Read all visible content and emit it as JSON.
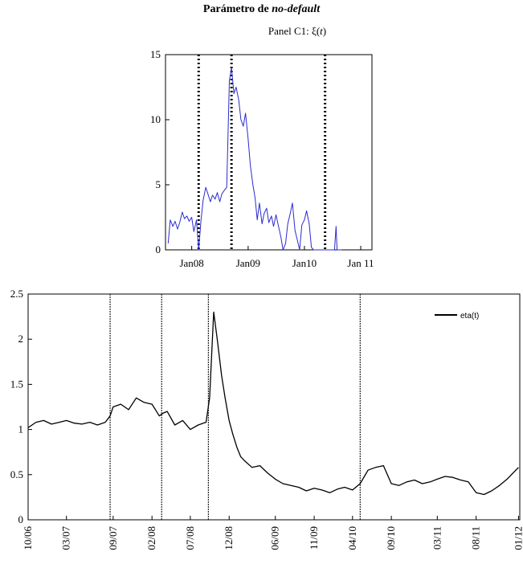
{
  "title": {
    "main": "Parámetro de",
    "main_italic": "no-default"
  },
  "panel": {
    "prefix": "Panel C1: ",
    "symbol": "ξ",
    "open": "(",
    "var": "t",
    "close": ")"
  },
  "colors": {
    "top_series": "#2b2bd0",
    "bottom_series": "#000000",
    "axis": "#000000"
  },
  "chart_data": [
    {
      "type": "line",
      "title": "Panel C1: ξ(t)",
      "xlabel": "",
      "ylabel": "",
      "x_ticks": [
        "Jan08",
        "Jan09",
        "Jan10",
        "Jan 11"
      ],
      "ylim": [
        0,
        15
      ],
      "y_ticks": [
        "0",
        "5",
        "10",
        "15"
      ],
      "xlim": [
        "2007-07-15",
        "2011-03-15"
      ],
      "vertical_lines": [
        "2008-02-15",
        "2008-09-15",
        "2010-05-15"
      ],
      "series": [
        {
          "color": "#2b2bd0",
          "x": [
            "2007-08-01",
            "2007-08-15",
            "2007-09-01",
            "2007-09-15",
            "2007-10-01",
            "2007-10-15",
            "2007-11-01",
            "2007-11-15",
            "2007-12-01",
            "2007-12-15",
            "2008-01-01",
            "2008-01-15",
            "2008-02-01",
            "2008-02-15",
            "2008-03-01",
            "2008-03-15",
            "2008-04-01",
            "2008-04-15",
            "2008-05-01",
            "2008-05-15",
            "2008-06-01",
            "2008-06-15",
            "2008-07-01",
            "2008-07-15",
            "2008-08-01",
            "2008-08-15",
            "2008-09-01",
            "2008-09-15",
            "2008-10-01",
            "2008-10-15",
            "2008-11-01",
            "2008-11-15",
            "2008-12-01",
            "2008-12-15",
            "2009-01-01",
            "2009-01-15",
            "2009-02-01",
            "2009-02-15",
            "2009-03-01",
            "2009-03-15",
            "2009-04-01",
            "2009-04-15",
            "2009-05-01",
            "2009-05-15",
            "2009-06-01",
            "2009-06-15",
            "2009-07-01",
            "2009-07-15",
            "2009-08-01",
            "2009-08-15",
            "2009-09-01",
            "2009-09-15",
            "2009-10-01",
            "2009-10-15",
            "2009-11-01",
            "2009-11-15",
            "2009-12-01",
            "2009-12-15",
            "2010-01-01",
            "2010-01-15",
            "2010-02-01",
            "2010-02-15",
            "2010-03-01",
            "2010-03-15",
            "2010-04-01",
            "2010-04-15",
            "2010-05-01",
            "2010-05-15",
            "2010-06-01",
            "2010-06-15",
            "2010-07-01",
            "2010-07-15",
            "2010-07-25",
            "2010-08-01",
            "2010-08-15",
            "2010-09-01"
          ],
          "y": [
            0.5,
            2.3,
            1.8,
            2.2,
            1.6,
            2.1,
            2.9,
            2.4,
            2.6,
            2.2,
            2.5,
            1.4,
            2.3,
            0.0,
            2.2,
            3.8,
            4.8,
            4.3,
            3.7,
            4.2,
            3.9,
            4.4,
            3.7,
            4.3,
            4.6,
            4.8,
            13.0,
            14.0,
            12.0,
            12.5,
            11.5,
            10.0,
            9.5,
            10.5,
            8.5,
            6.5,
            5.0,
            4.0,
            2.3,
            3.6,
            2.0,
            2.8,
            3.2,
            2.1,
            2.6,
            1.8,
            2.7,
            1.9,
            1.0,
            0.0,
            0.5,
            2.0,
            2.8,
            3.6,
            1.5,
            0.8,
            0.0,
            1.9,
            2.3,
            3.0,
            2.0,
            0.2,
            0.0,
            0.0,
            0.0,
            0.0,
            0.0,
            0.0,
            0.0,
            0.0,
            0.0,
            0.0,
            1.8,
            0.0,
            0.0,
            0.0
          ]
        }
      ]
    },
    {
      "type": "line",
      "title": "",
      "xlabel": "",
      "ylabel": "",
      "ylim": [
        0,
        2.5
      ],
      "y_ticks": [
        "0",
        "0.5",
        "1",
        "1.5",
        "2",
        "2.5"
      ],
      "x_ticks": [
        "10/06",
        "03/07",
        "09/07",
        "02/08",
        "07/08",
        "12/08",
        "06/09",
        "11/09",
        "04/10",
        "09/10",
        "03/11",
        "08/11",
        "01/12"
      ],
      "xlim": [
        "2006-10-01",
        "2012-01-20"
      ],
      "vertical_lines": [
        "2007-08-20",
        "2008-03-10",
        "2008-09-10",
        "2010-05-01"
      ],
      "series": [
        {
          "name": "eta(t)",
          "color": "#000000",
          "x": [
            "2006-10-01",
            "2006-11-01",
            "2006-12-01",
            "2007-01-01",
            "2007-02-01",
            "2007-03-01",
            "2007-04-01",
            "2007-05-01",
            "2007-06-01",
            "2007-07-01",
            "2007-08-01",
            "2007-08-20",
            "2007-09-01",
            "2007-10-01",
            "2007-11-01",
            "2007-12-01",
            "2008-01-01",
            "2008-02-01",
            "2008-03-01",
            "2008-03-15",
            "2008-04-01",
            "2008-05-01",
            "2008-06-01",
            "2008-07-01",
            "2008-08-01",
            "2008-09-01",
            "2008-09-15",
            "2008-10-01",
            "2008-10-15",
            "2008-11-01",
            "2008-11-15",
            "2008-12-01",
            "2008-12-15",
            "2009-01-01",
            "2009-01-15",
            "2009-02-01",
            "2009-03-01",
            "2009-04-01",
            "2009-05-01",
            "2009-06-01",
            "2009-07-01",
            "2009-08-01",
            "2009-09-01",
            "2009-10-01",
            "2009-11-01",
            "2009-12-01",
            "2010-01-01",
            "2010-02-01",
            "2010-03-01",
            "2010-04-01",
            "2010-05-01",
            "2010-06-01",
            "2010-07-01",
            "2010-08-01",
            "2010-09-01",
            "2010-10-01",
            "2010-11-01",
            "2010-12-01",
            "2011-01-01",
            "2011-02-01",
            "2011-03-01",
            "2011-04-01",
            "2011-05-01",
            "2011-06-01",
            "2011-07-01",
            "2011-08-01",
            "2011-09-01",
            "2011-10-01",
            "2011-11-01",
            "2011-12-01",
            "2012-01-15"
          ],
          "y": [
            1.02,
            1.08,
            1.1,
            1.06,
            1.08,
            1.1,
            1.07,
            1.06,
            1.08,
            1.05,
            1.08,
            1.15,
            1.25,
            1.28,
            1.22,
            1.35,
            1.3,
            1.28,
            1.15,
            1.18,
            1.2,
            1.05,
            1.1,
            1.0,
            1.05,
            1.08,
            1.35,
            2.3,
            2.0,
            1.6,
            1.35,
            1.1,
            0.95,
            0.8,
            0.7,
            0.65,
            0.58,
            0.6,
            0.52,
            0.45,
            0.4,
            0.38,
            0.36,
            0.32,
            0.35,
            0.33,
            0.3,
            0.34,
            0.36,
            0.33,
            0.4,
            0.55,
            0.58,
            0.6,
            0.4,
            0.38,
            0.42,
            0.44,
            0.4,
            0.42,
            0.45,
            0.48,
            0.47,
            0.44,
            0.42,
            0.3,
            0.28,
            0.32,
            0.38,
            0.45,
            0.58
          ]
        }
      ],
      "legend": "top-right"
    }
  ]
}
